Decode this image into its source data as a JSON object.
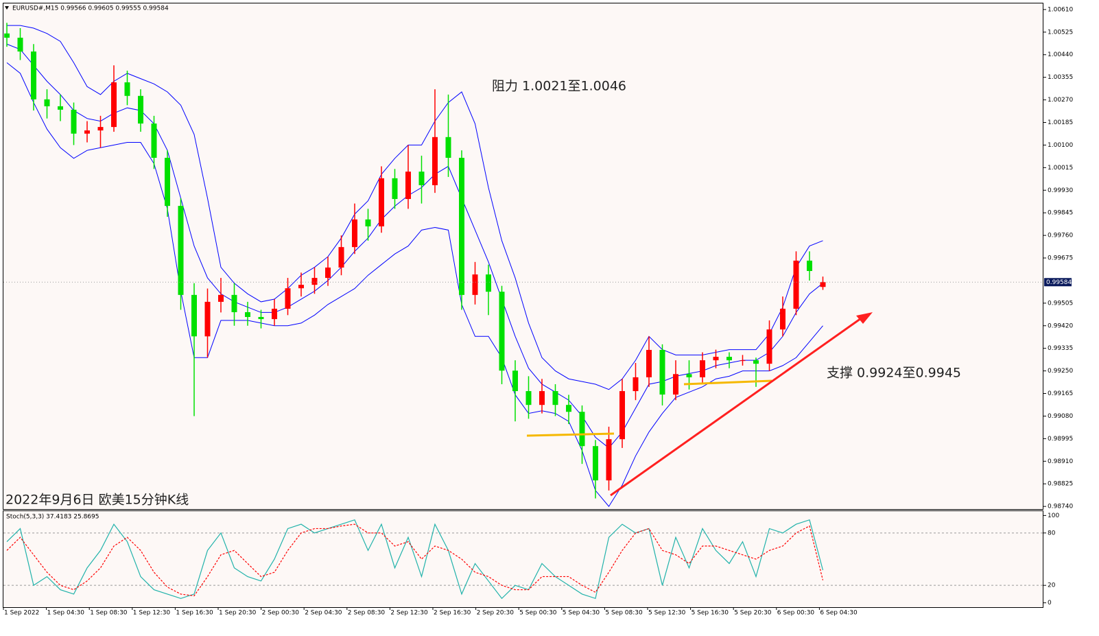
{
  "chart_data": [
    {
      "type": "candlestick",
      "title": "EURUSD#,M15  0.99566 0.99605 0.99555 0.99584",
      "annotations": [
        "阻力 1.0021至1.0046",
        "支撑 0.9924至0.9945",
        "2022年9月6日 欧美15分钟K线"
      ],
      "up_color": "#ff0000",
      "down_color": "#00e000",
      "current_price": 0.99584,
      "ylim": [
        0.9873,
        1.00633
      ],
      "yticks": [
        {
          "value": 1.0061,
          "label": "1.00610"
        },
        1.00525,
        {
          "value": 1.0044,
          "label": "1.00440"
        },
        1.00355,
        {
          "value": 1.0027,
          "label": "1.00270"
        },
        1.00185,
        {
          "value": 1.001,
          "label": "1.00100"
        },
        1.00015,
        {
          "value": 0.9993,
          "label": "0.99930"
        },
        0.99845,
        {
          "value": 0.9976,
          "label": "0.99760"
        },
        0.99675,
        0.99505,
        {
          "value": 0.9942,
          "label": "0.99420"
        },
        0.99335,
        {
          "value": 0.9925,
          "label": "0.99250"
        },
        0.99165,
        {
          "value": 0.9908,
          "label": "0.99080"
        },
        0.98995,
        {
          "value": 0.9891,
          "label": "0.98910"
        },
        0.98825,
        {
          "value": 0.9874,
          "label": "0.98740"
        }
      ],
      "open": [
        1.0052,
        1.00504,
        1.00452,
        1.00272,
        1.00246,
        1.00233,
        1.00143,
        1.00155,
        1.00168,
        1.00336,
        1.00285,
        1.00181,
        1.00052,
        0.99871,
        0.99536,
        0.9938,
        0.9951,
        0.99536,
        0.99471,
        0.99453,
        0.99445,
        0.99484,
        0.99561,
        0.99574,
        0.996,
        0.99639,
        0.99716,
        0.9982,
        0.99794,
        0.99975,
        0.99897,
        1.0,
        0.99949,
        1.0013,
        1.00052,
        0.99536,
        0.99613,
        0.99548,
        0.99251,
        0.99174,
        0.99122,
        0.99174,
        0.99122,
        0.99096,
        0.98967,
        0.98838,
        0.98993,
        0.99174,
        0.99226,
        0.99329,
        0.99161,
        0.99238,
        0.99226,
        0.9929,
        0.99303,
        0.9929,
        0.9929,
        0.99277,
        0.99406,
        0.99484,
        0.99665,
        0.99566
      ],
      "high": [
        1.0056,
        1.0054,
        1.0048,
        1.0031,
        1.0029,
        1.0026,
        1.0019,
        1.0021,
        1.004,
        1.0038,
        1.0031,
        1.0021,
        1.0008,
        0.999,
        0.9958,
        0.9956,
        0.996,
        0.9958,
        0.9951,
        0.9948,
        0.9952,
        0.996,
        0.9962,
        0.9964,
        0.9968,
        0.9976,
        0.9988,
        0.9986,
        1.0002,
        1.0001,
        1.001,
        1.0006,
        1.0031,
        1.0029,
        1.0008,
        0.9966,
        0.9965,
        0.9957,
        0.9929,
        0.9923,
        0.9922,
        0.992,
        0.9916,
        0.9912,
        0.9899,
        0.9904,
        0.9922,
        0.9928,
        0.9938,
        0.9935,
        0.9929,
        0.9929,
        0.9932,
        0.9933,
        0.9932,
        0.9931,
        0.993,
        0.9944,
        0.9953,
        0.997,
        0.997,
        0.99605
      ],
      "low": [
        1.0047,
        1.0042,
        1.0023,
        1.002,
        1.0019,
        1.001,
        1.0011,
        1.0009,
        1.0015,
        1.0025,
        1.0015,
        1.0001,
        0.9983,
        0.9948,
        0.9908,
        0.993,
        0.9947,
        0.9942,
        0.9942,
        0.9941,
        0.9942,
        0.9946,
        0.9953,
        0.9954,
        0.9957,
        0.9961,
        0.9969,
        0.9974,
        0.9977,
        0.9986,
        0.9986,
        0.9988,
        0.9992,
        0.9998,
        0.9948,
        0.995,
        0.9946,
        0.992,
        0.9906,
        0.9907,
        0.9909,
        0.9908,
        0.9905,
        0.989,
        0.9877,
        0.988,
        0.9896,
        0.9914,
        0.9919,
        0.9912,
        0.9914,
        0.9918,
        0.992,
        0.9926,
        0.9926,
        0.9927,
        0.9919,
        0.9925,
        0.9938,
        0.9946,
        0.9959,
        0.99555
      ],
      "close": [
        1.00504,
        1.00452,
        1.00272,
        1.00246,
        1.00233,
        1.00143,
        1.00155,
        1.00168,
        1.00336,
        1.00285,
        1.00181,
        1.00052,
        0.99871,
        0.99536,
        0.9938,
        0.9951,
        0.99536,
        0.99471,
        0.99453,
        0.99445,
        0.99484,
        0.99561,
        0.99574,
        0.996,
        0.99639,
        0.99716,
        0.9982,
        0.99794,
        0.99975,
        0.99897,
        1.0,
        0.99949,
        1.0013,
        1.00052,
        0.99536,
        0.99613,
        0.99548,
        0.99251,
        0.99174,
        0.99122,
        0.99174,
        0.99122,
        0.99096,
        0.98967,
        0.98838,
        0.98993,
        0.99174,
        0.99226,
        0.99329,
        0.99161,
        0.99238,
        0.99226,
        0.9929,
        0.99303,
        0.9929,
        0.9929,
        0.99277,
        0.99406,
        0.99484,
        0.99665,
        0.99626,
        0.99584
      ],
      "bands": [
        {
          "color": "#0000ff",
          "values": [
            1.0055,
            1.0055,
            1.0054,
            1.0052,
            1.0049,
            1.0041,
            1.0032,
            1.0029,
            1.0034,
            1.0037,
            1.0035,
            1.0033,
            1.003,
            1.0025,
            1.0014,
            0.999,
            0.9964,
            0.9958,
            0.9954,
            0.9951,
            0.9952,
            0.9956,
            0.9961,
            0.9964,
            0.9968,
            0.9975,
            0.9984,
            0.9989,
            0.9999,
            1.0005,
            1.001,
            1.001,
            1.0019,
            1.0026,
            1.003,
            1.0018,
            0.9994,
            0.9974,
            0.996,
            0.9943,
            0.993,
            0.9925,
            0.9922,
            0.9921,
            0.992,
            0.9918,
            0.9922,
            0.9929,
            0.9938,
            0.9933,
            0.9931,
            0.9931,
            0.9931,
            0.9932,
            0.9933,
            0.9933,
            0.9933,
            0.9939,
            0.9949,
            0.9964,
            0.9972,
            0.9974
          ]
        },
        {
          "color": "#0000ff",
          "values": [
            1.0048,
            1.0046,
            1.004,
            1.0034,
            1.0029,
            1.0023,
            1.002,
            1.0019,
            1.0022,
            1.0024,
            1.0023,
            1.0018,
            1.0008,
            0.999,
            0.9972,
            0.996,
            0.9954,
            0.9951,
            0.9949,
            0.9947,
            0.9947,
            0.9949,
            0.9952,
            0.9955,
            0.9959,
            0.9964,
            0.997,
            0.9975,
            0.9982,
            0.9987,
            0.9991,
            0.9994,
            0.9999,
            1.0002,
            0.999,
            0.9978,
            0.9966,
            0.9952,
            0.9938,
            0.9926,
            0.992,
            0.9917,
            0.9914,
            0.9908,
            0.99,
            0.9896,
            0.9902,
            0.9911,
            0.992,
            0.9921,
            0.9923,
            0.9924,
            0.9925,
            0.9927,
            0.9928,
            0.9929,
            0.9929,
            0.9932,
            0.9938,
            0.9947,
            0.9954,
            0.9958
          ]
        },
        {
          "color": "#0000ff",
          "values": [
            1.0041,
            1.0037,
            1.0026,
            1.0016,
            1.0009,
            1.0005,
            1.0008,
            1.0009,
            1.001,
            1.0011,
            1.0011,
            1.0003,
            0.9986,
            0.9955,
            0.993,
            0.993,
            0.9944,
            0.9944,
            0.9944,
            0.9943,
            0.9942,
            0.9942,
            0.9943,
            0.9946,
            0.995,
            0.9953,
            0.9956,
            0.9961,
            0.9965,
            0.9969,
            0.9972,
            0.9978,
            0.9979,
            0.9978,
            0.995,
            0.9938,
            0.9938,
            0.993,
            0.9916,
            0.9909,
            0.991,
            0.9909,
            0.9906,
            0.9895,
            0.988,
            0.9874,
            0.9882,
            0.9893,
            0.9902,
            0.9909,
            0.9915,
            0.9917,
            0.9919,
            0.9922,
            0.9923,
            0.9925,
            0.9925,
            0.9925,
            0.9927,
            0.993,
            0.9936,
            0.9942
          ]
        }
      ]
    },
    {
      "type": "line",
      "title": "Stoch(5,3,3) 37.4183 25.8695",
      "ylim": [
        -5,
        105
      ],
      "yticks": [
        0,
        20,
        80,
        100
      ],
      "levels": [
        20,
        80
      ],
      "series": [
        {
          "color": "#20b2aa",
          "dash": false,
          "values": [
            70,
            85,
            20,
            30,
            15,
            10,
            40,
            60,
            90,
            70,
            30,
            15,
            10,
            5,
            10,
            60,
            80,
            40,
            30,
            25,
            50,
            85,
            90,
            80,
            85,
            90,
            95,
            60,
            90,
            40,
            75,
            30,
            90,
            60,
            10,
            45,
            25,
            5,
            20,
            15,
            45,
            30,
            20,
            10,
            5,
            75,
            90,
            80,
            85,
            20,
            75,
            40,
            85,
            60,
            45,
            70,
            30,
            85,
            80,
            90,
            95,
            37.4183
          ]
        },
        {
          "color": "#ff0000",
          "dash": true,
          "values": [
            60,
            75,
            55,
            35,
            20,
            15,
            25,
            40,
            65,
            75,
            60,
            35,
            18,
            10,
            8,
            30,
            55,
            60,
            45,
            30,
            35,
            60,
            80,
            85,
            85,
            88,
            90,
            80,
            80,
            65,
            70,
            50,
            65,
            60,
            50,
            35,
            30,
            20,
            15,
            15,
            30,
            30,
            30,
            20,
            12,
            35,
            60,
            80,
            85,
            60,
            55,
            45,
            65,
            65,
            60,
            55,
            50,
            60,
            65,
            80,
            88,
            25.8695
          ]
        }
      ],
      "xtick_labels": [
        "1 Sep 2022",
        "1 Sep 04:30",
        "1 Sep 08:30",
        "1 Sep 12:30",
        "1 Sep 16:30",
        "1 Sep 20:30",
        "2 Sep 00:30",
        "2 Sep 04:30",
        "2 Sep 08:30",
        "2 Sep 12:30",
        "2 Sep 16:30",
        "2 Sep 20:30",
        "5 Sep 00:30",
        "5 Sep 04:30",
        "5 Sep 08:30",
        "5 Sep 12:30",
        "5 Sep 16:30",
        "5 Sep 20:30",
        "6 Sep 00:30",
        "6 Sep 04:30"
      ]
    }
  ]
}
